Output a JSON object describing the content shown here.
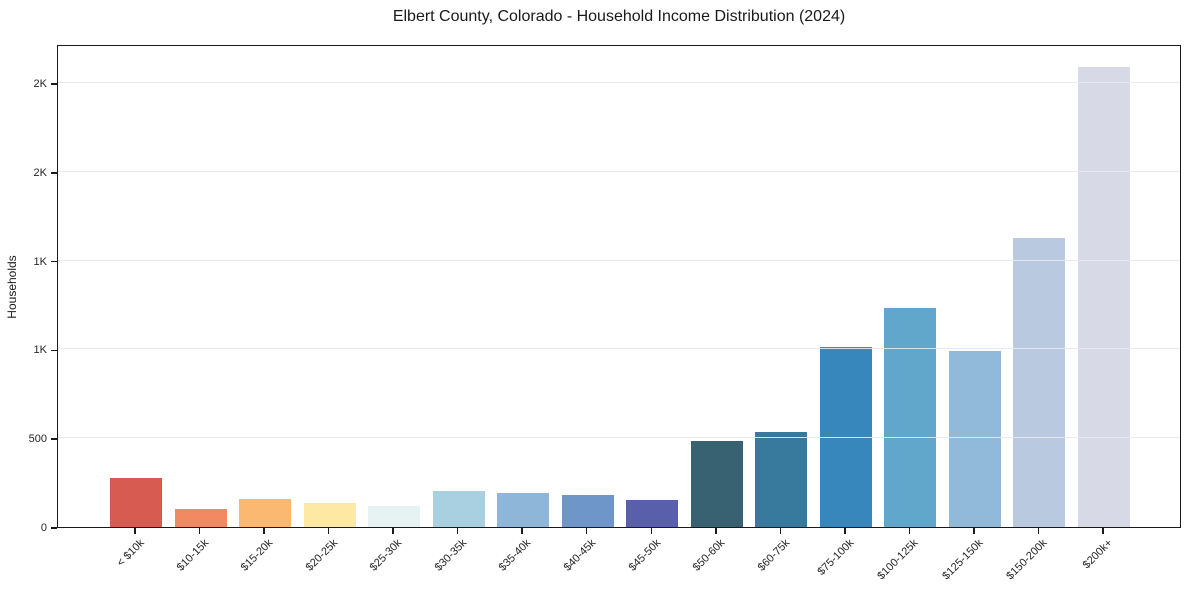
{
  "chart_data": {
    "type": "bar",
    "title": "Elbert County, Colorado - Household Income Distribution (2024)",
    "xlabel": "",
    "ylabel": "Households",
    "categories": [
      "< $10k",
      "$10-15k",
      "$15-20k",
      "$20-25k",
      "$25-30k",
      "$30-35k",
      "$35-40k",
      "$40-45k",
      "$45-50k",
      "$50-60k",
      "$60-75k",
      "$75-100k",
      "$100-125k",
      "$125-150k",
      "$150-200k",
      "$200k+"
    ],
    "values": [
      275,
      100,
      158,
      133,
      120,
      205,
      193,
      180,
      150,
      483,
      535,
      1015,
      1235,
      990,
      1630,
      2590
    ],
    "bar_colors": [
      "#d75b50",
      "#f18a63",
      "#fbb871",
      "#fde8a4",
      "#e7f2f3",
      "#a8d0e1",
      "#8db6d9",
      "#6e96c8",
      "#5a5fab",
      "#386271",
      "#387a9e",
      "#3787bd",
      "#61a6cb",
      "#90b9da",
      "#b8c9e0",
      "#d8d9e6"
    ],
    "ylim": [
      0,
      2720
    ],
    "y_ticks": [
      {
        "value": 0,
        "label": "0"
      },
      {
        "value": 500,
        "label": "500"
      },
      {
        "value": 1000,
        "label": "1K"
      },
      {
        "value": 1500,
        "label": "1K"
      },
      {
        "value": 2000,
        "label": "2K"
      },
      {
        "value": 2500,
        "label": "2K"
      }
    ],
    "grid": "horizontal, light gray, drawn over bars",
    "legend": "none",
    "axis_color": "#1a1a1a",
    "background_color": "#ffffff"
  }
}
